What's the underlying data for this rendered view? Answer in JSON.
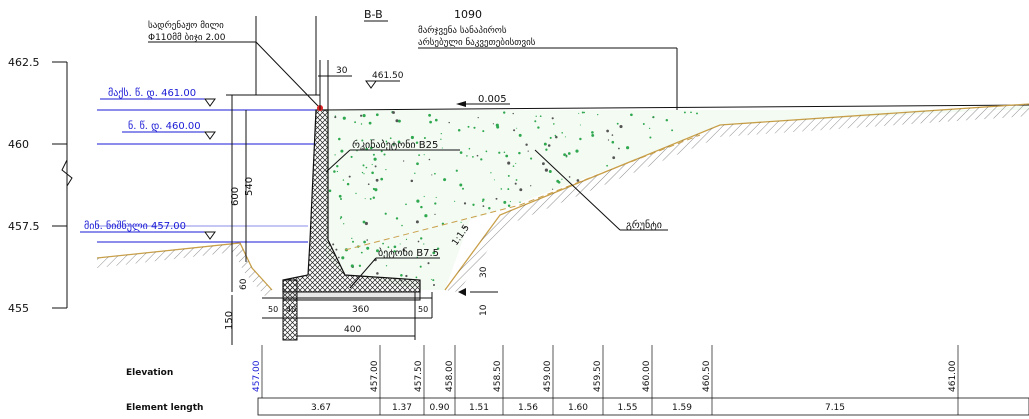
{
  "section": {
    "id": "B-B",
    "number": "1090",
    "title_line1": "მარჯვენა სანაპიროს",
    "title_line2": "არსებული ნაკვეთებისთვის"
  },
  "top_labels": {
    "drain_pipe_line1": "სადრენაჟო მილი",
    "drain_pipe_line2": "Φ110მმ ბიჯი 2.00",
    "top_dim_30": "30",
    "top_mark": "461.50",
    "slope": "0.005"
  },
  "water_levels": {
    "max_level": "მაქს. წ. დ. 461.00",
    "normal_level": "ნ. წ. დ. 460.00",
    "min_level": "მინ. ნიშნული 457.00"
  },
  "y_axis": [
    "462.5",
    "460",
    "457.5",
    "455"
  ],
  "materials": {
    "concrete": "რკინაბეტონი B25",
    "base": "ბეტონი B7.5",
    "fill": "გრუნტი",
    "slope_ratio": "1:1.5"
  },
  "dimensions": {
    "wall_height": "600",
    "inner_height": "540",
    "footing_height": "60",
    "base_height": "150",
    "width_50_left": "50",
    "width_40": "40",
    "width_360": "360",
    "width_50_right": "50",
    "width_400": "400",
    "vert_30": "30",
    "vert_10": "10"
  },
  "table": {
    "elevation_label": "Elevation",
    "length_label": "Element length",
    "elevations": [
      "457.00",
      "457.00",
      "457.50",
      "458.00",
      "458.50",
      "459.00",
      "459.50",
      "460.00",
      "460.50",
      "461.00"
    ],
    "lengths": [
      "3.67",
      "1.37",
      "0.90",
      "1.51",
      "1.56",
      "1.60",
      "1.55",
      "1.59",
      "7.15"
    ]
  },
  "colors": {
    "line": "#111111",
    "water": "#1a1ad6",
    "ground": "#c9a04a",
    "fill_dots": "#2fa84f",
    "marker": "#e02020"
  }
}
